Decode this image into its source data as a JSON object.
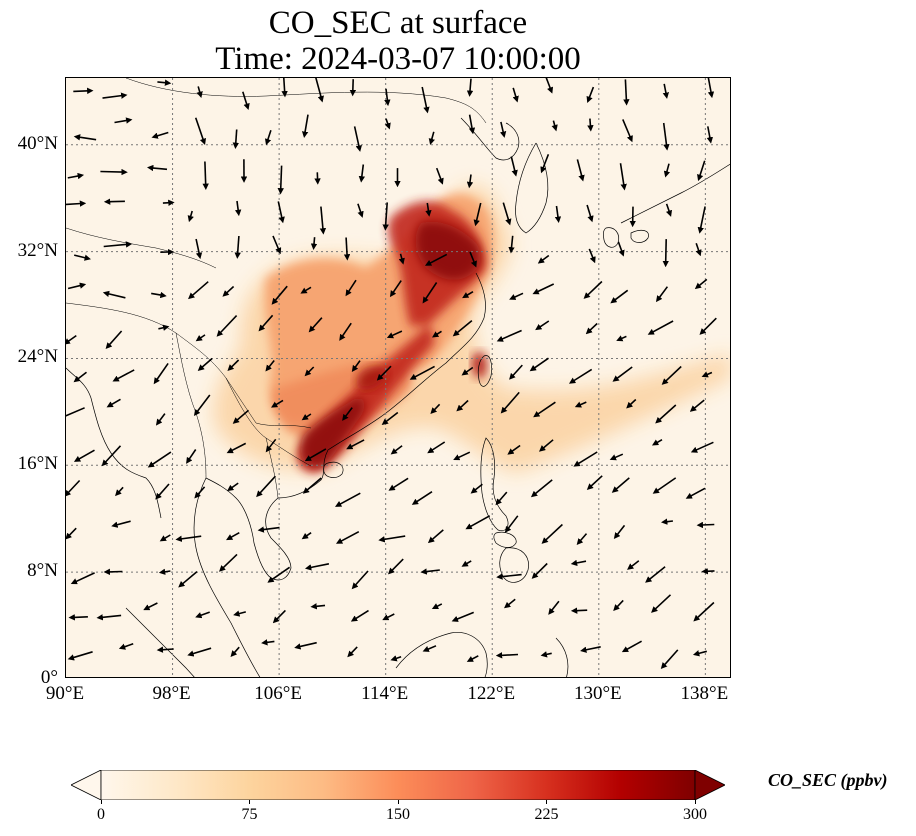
{
  "title": {
    "line1": "CO_SEC at surface",
    "line2": "Time: 2024-03-07 10:00:00"
  },
  "map": {
    "extent": {
      "lon_min": 90,
      "lon_max": 140,
      "lat_min": 0,
      "lat_max": 45
    },
    "projection": "PlateCarree",
    "gridlines": "dotted",
    "lat_ticks": [
      {
        "value": 0,
        "label": "0°"
      },
      {
        "value": 8,
        "label": "8°N"
      },
      {
        "value": 16,
        "label": "16°N"
      },
      {
        "value": 24,
        "label": "24°N"
      },
      {
        "value": 32,
        "label": "32°N"
      },
      {
        "value": 40,
        "label": "40°N"
      }
    ],
    "lon_ticks": [
      {
        "value": 90,
        "label": "90°E"
      },
      {
        "value": 98,
        "label": "98°E"
      },
      {
        "value": 106,
        "label": "106°E"
      },
      {
        "value": 114,
        "label": "114°E"
      },
      {
        "value": 122,
        "label": "122°E"
      },
      {
        "value": 130,
        "label": "130°E"
      },
      {
        "value": 138,
        "label": "138°E"
      }
    ],
    "field": "CO_SEC",
    "wind_vectors": "shown"
  },
  "colorbar": {
    "label": "CO_SEC (ppbv)",
    "colormap": "OrRd",
    "min": 0,
    "max": 300,
    "extend": "both",
    "ticks": [
      {
        "value": 0,
        "label": "0"
      },
      {
        "value": 75,
        "label": "75"
      },
      {
        "value": 150,
        "label": "150"
      },
      {
        "value": 225,
        "label": "225"
      },
      {
        "value": 300,
        "label": "300"
      }
    ],
    "colors": [
      "#fff7ec",
      "#fee8c8",
      "#fdd49e",
      "#fdbb84",
      "#fc8d59",
      "#ef6548",
      "#d7301f",
      "#b30000",
      "#7f0000"
    ]
  }
}
